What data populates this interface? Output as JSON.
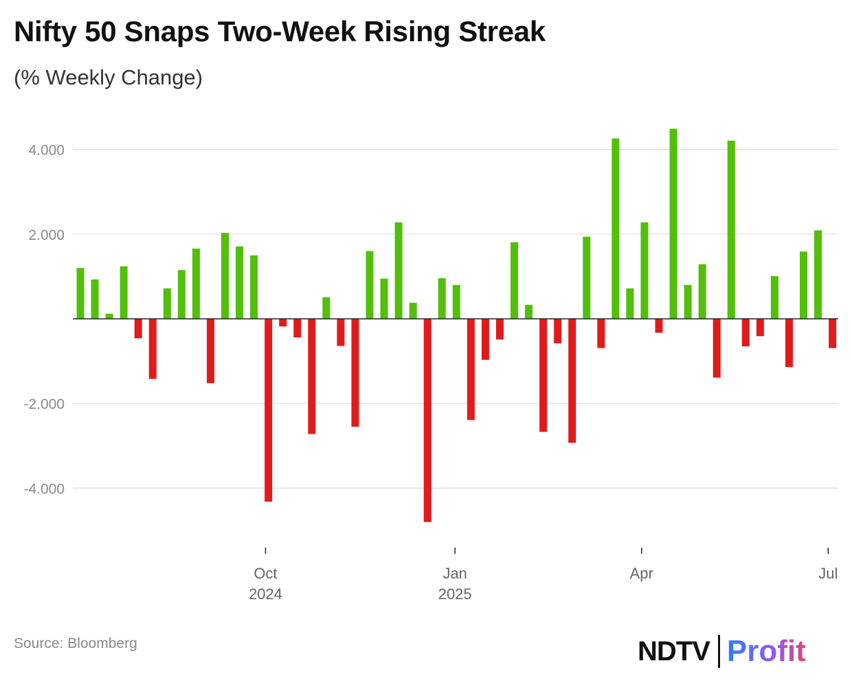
{
  "chart_data": {
    "type": "bar",
    "title": "Nifty 50 Snaps Two-Week Rising Streak",
    "subtitle": "(% Weekly Change)",
    "xlabel": "",
    "ylabel": "",
    "ylim": [
      -5.2,
      4.8
    ],
    "y_ticks": [
      {
        "value": 4,
        "label": "4.000"
      },
      {
        "value": 2,
        "label": "2.000"
      },
      {
        "value": -2,
        "label": "-2.000"
      },
      {
        "value": -4,
        "label": "-4.000"
      }
    ],
    "x_ticks": [
      {
        "index": 12.8,
        "label": "Oct",
        "sublabel": "2024"
      },
      {
        "index": 25.9,
        "label": "Jan",
        "sublabel": "2025"
      },
      {
        "index": 38.8,
        "label": "Apr",
        "sublabel": ""
      },
      {
        "index": 51.7,
        "label": "Jul",
        "sublabel": ""
      }
    ],
    "grid": true,
    "legend": "none",
    "colors": {
      "positive": "#52bf0a",
      "negative": "#e01b1b",
      "grid": "#dddddd",
      "axis": "#222222",
      "tick_label": "#8a8a8a"
    },
    "values": [
      1.2,
      0.93,
      0.12,
      1.24,
      -0.46,
      -1.42,
      0.72,
      1.15,
      1.66,
      -1.52,
      2.03,
      1.71,
      1.5,
      -4.32,
      -0.18,
      -0.44,
      -2.72,
      0.51,
      -0.64,
      -2.55,
      1.6,
      0.95,
      2.28,
      0.38,
      -4.8,
      0.96,
      0.8,
      -2.39,
      -0.97,
      -0.49,
      1.81,
      0.33,
      -2.67,
      -0.58,
      -2.93,
      1.94,
      -0.69,
      4.26,
      0.72,
      2.28,
      -0.33,
      4.49,
      0.8,
      1.29,
      -1.39,
      4.21,
      -0.65,
      -0.41,
      1.01,
      -1.14,
      1.59,
      2.09,
      -0.69
    ]
  },
  "source": "Source: Bloomberg",
  "brand": {
    "ndtv": "NDTV",
    "profit": "Profit"
  }
}
